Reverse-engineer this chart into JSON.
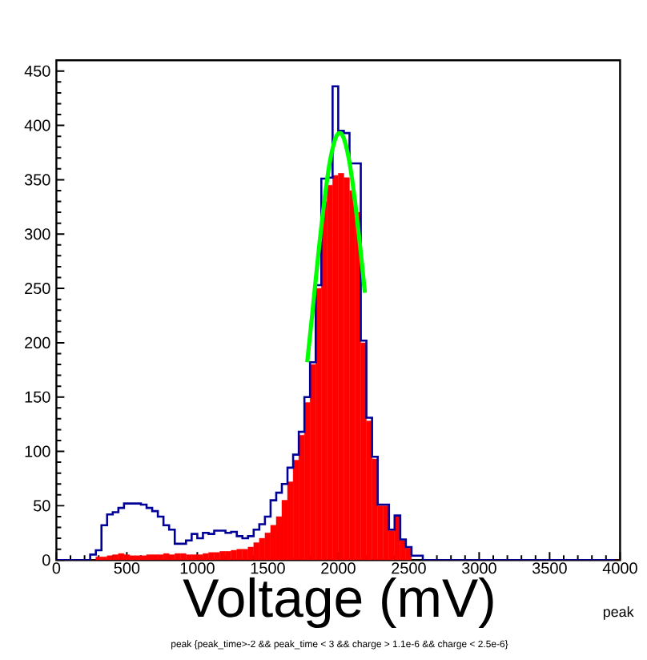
{
  "chart_data": {
    "type": "histogram",
    "xlabel": "Voltage (mV)",
    "annotations": [
      "peak",
      "peak {peak_time>-2 && peak_time < 3 && charge > 1.1e-6 && charge < 2.5e-6}"
    ],
    "bins": [
      0,
      40,
      80,
      120,
      160,
      200,
      240,
      280,
      320,
      360,
      400,
      440,
      480,
      520,
      560,
      600,
      640,
      680,
      720,
      760,
      800,
      840,
      880,
      920,
      960,
      1000,
      1040,
      1080,
      1120,
      1160,
      1200,
      1240,
      1280,
      1320,
      1360,
      1400,
      1440,
      1480,
      1520,
      1560,
      1600,
      1640,
      1680,
      1720,
      1760,
      1800,
      1840,
      1880,
      1920,
      1960,
      2000,
      2040,
      2080,
      2120,
      2160,
      2200,
      2240,
      2280,
      2320,
      2360,
      2400,
      2440,
      2480,
      2520,
      2560,
      2600,
      2640,
      2680,
      2720,
      2760,
      2800,
      2840,
      2880,
      2920,
      2960,
      3000,
      3040,
      3080,
      3120,
      3160,
      3200,
      3240,
      3280,
      3320,
      3360,
      3400,
      3440,
      3480,
      3520,
      3560,
      3600,
      3640,
      3680,
      3720,
      3760,
      3800,
      3840,
      3880,
      3920,
      3960,
      4000
    ],
    "series": [
      {
        "color": "#ff0000",
        "values": [
          0,
          0,
          0,
          0,
          0,
          0,
          0,
          3,
          3,
          4,
          5,
          6,
          5,
          4,
          4,
          4,
          5,
          5,
          5,
          6,
          5,
          6,
          6,
          5,
          5,
          5,
          6,
          7,
          7,
          8,
          8,
          9,
          10,
          10,
          12,
          16,
          20,
          25,
          32,
          40,
          55,
          72,
          92,
          115,
          145,
          180,
          250,
          330,
          345,
          354,
          356,
          352,
          340,
          320,
          200,
          128,
          93,
          50,
          50,
          27,
          40,
          18,
          11,
          null,
          null,
          0,
          0,
          0,
          0,
          0,
          0,
          0,
          0,
          0,
          0,
          0,
          0,
          0,
          0,
          0,
          0,
          0,
          0,
          0,
          0,
          0,
          0,
          0,
          0,
          0,
          0,
          0,
          0,
          0,
          0,
          0,
          0,
          0,
          0,
          0
        ]
      },
      {
        "type": "step",
        "color": "#000099",
        "x": [
          0,
          40,
          80,
          120,
          160,
          200,
          240,
          280,
          320,
          360,
          400,
          440,
          480,
          520,
          560,
          600,
          640,
          680,
          720,
          760,
          800,
          840,
          880,
          920,
          960,
          1000,
          1040,
          1080,
          1120,
          1160,
          1200,
          1240,
          1280,
          1320,
          1360,
          1400,
          1440,
          1480,
          1520,
          1560,
          1600,
          1640,
          1680,
          1720,
          1760,
          1800,
          1840,
          1880,
          1920,
          1960,
          2000,
          2040,
          2080,
          2120,
          2160,
          2200,
          2240,
          2280,
          2320,
          2360,
          2400,
          2440,
          2480,
          2520,
          2560,
          2600,
          2640,
          2680,
          2720,
          2760,
          2800,
          2840,
          2880,
          2920,
          2960,
          3000,
          3040,
          3080,
          3120,
          3160,
          3200,
          3240,
          3280,
          3320,
          3360,
          3400,
          3440,
          3480,
          3520,
          3560,
          3600,
          3640,
          3680,
          3720,
          3760,
          3800,
          3840,
          3880,
          3920,
          3960
        ],
        "values": [
          0,
          0,
          0,
          0,
          0,
          0,
          5,
          9,
          32,
          42,
          44,
          48,
          52,
          52,
          52,
          51,
          48,
          45,
          40,
          32,
          28,
          15,
          15,
          18,
          24,
          20,
          25,
          24,
          27,
          27,
          25,
          26,
          22,
          20,
          22,
          28,
          33,
          40,
          55,
          62,
          70,
          85,
          97,
          118,
          150,
          182,
          253,
          351,
          352,
          436,
          395,
          393,
          365,
          365,
          202,
          131,
          95,
          51,
          51,
          28,
          41,
          19,
          12,
          4,
          4,
          0,
          0,
          0,
          0,
          0,
          0,
          0,
          0,
          0,
          0,
          0,
          0,
          0,
          0,
          0,
          0,
          0,
          0,
          0,
          0,
          0,
          0,
          0,
          0,
          0,
          0,
          0,
          0,
          0,
          0,
          0,
          0,
          0,
          0,
          0
        ]
      },
      {
        "type": "line",
        "color": "#00ff00",
        "x": [
          1780,
          1820,
          1860,
          1900,
          1940,
          1980,
          2010,
          2040,
          2080,
          2120,
          2160,
          2189
        ],
        "values": [
          182,
          232,
          283,
          329,
          366,
          388,
          393,
          388,
          366,
          329,
          283,
          246
        ]
      }
    ],
    "xlim": [
      0,
      4000
    ],
    "xticks": [
      0,
      500,
      1000,
      1500,
      2000,
      2500,
      3000,
      3500,
      4000
    ],
    "ylim": [
      0,
      460
    ],
    "yticks": [
      0,
      50,
      100,
      150,
      200,
      250,
      300,
      350,
      400,
      450
    ],
    "grid": false
  }
}
